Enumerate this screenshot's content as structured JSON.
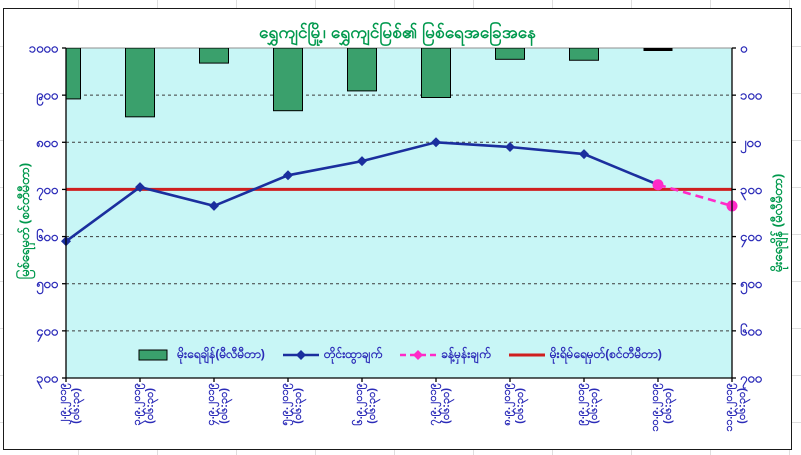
{
  "title": "ရွှေကျင်မြို့၊ ရွှေကျင်မြစ်၏ မြစ်ရေအခြေအနေ",
  "left_axis": {
    "title": "မြစ်ရေမှတ် (စင်တီမီတာ)",
    "tick_labels": [
      "၁၀၀၀",
      "၉၀၀",
      "၈၀၀",
      "၇၀၀",
      "၆၀၀",
      "၅၀၀",
      "၄၀၀",
      "၃၀၀"
    ],
    "tick_values": [
      1000,
      900,
      800,
      700,
      600,
      500,
      400,
      300
    ]
  },
  "right_axis": {
    "title": "မိုးရေချိန် (မီလီမီတာ)",
    "tick_labels": [
      "၀",
      "၁၀၀",
      "၂၀၀",
      "၃၀၀",
      "၄၀၀",
      "၅၀၀",
      "၆၀၀",
      "၇၀၀"
    ],
    "tick_values": [
      0,
      100,
      200,
      300,
      400,
      500,
      600,
      700
    ]
  },
  "x_axis": {
    "time_suffix": "(၀၆:၃၀)"
  },
  "legend": {
    "items": [
      {
        "key": "rainfall",
        "label": "မိုးရေချိန်(မီလီမီတာ)",
        "marker": "bar",
        "color": "#3aa06c"
      },
      {
        "key": "measured",
        "label": "တိုင်းထွာချက်",
        "marker": "line-diamond",
        "color": "#1b2f9e"
      },
      {
        "key": "forecast",
        "label": "ခန့်မှန်းချက်",
        "marker": "dash-diamond",
        "color": "#ff2ac8"
      },
      {
        "key": "danger",
        "label": "မိုးရိမ်ရေမှတ်(စင်တီမီတာ)",
        "marker": "line",
        "color": "#cf1f1f"
      }
    ]
  },
  "colors": {
    "plot_bg": "#c8f6f6",
    "axis_text": "#2b2bb8",
    "title_text": "#00994d",
    "bar_fill": "#3aa06c",
    "measured_line": "#1b2f9e",
    "forecast_line": "#ff2ac8",
    "danger_line": "#cf1f1f"
  },
  "chart_data": {
    "type": "combo",
    "categories": [
      "၂.၉.၂၀၁၉",
      "၃.၉.၂၀၁၉",
      "၄.၉.၂၀၁၉",
      "၅.၉.၂၀၁၉",
      "၆.၉.၂၀၁၉",
      "၇.၉.၂၀၁၉",
      "၈.၉.၂၀၁၉",
      "၉.၉.၂၀၁၉",
      "၁၀.၉.၂၀၁၉",
      "၁၁.၉.၂၀၁၉"
    ],
    "category_time": "(၀၆:၃၀)",
    "left_axis_range": [
      300,
      1000
    ],
    "right_axis_range": [
      0,
      700
    ],
    "right_axis_inverted": true,
    "grid_interval": 100,
    "legend_position": "bottom-inside",
    "series": [
      {
        "name": "မိုးရေချိန်(မီလီမီတာ)",
        "type": "bar",
        "axis": "right",
        "unit": "mm",
        "values": [
          108,
          146,
          32,
          133,
          91,
          105,
          24,
          26,
          0,
          null
        ]
      },
      {
        "name": "တိုင်းထွာချက်",
        "type": "line",
        "axis": "left",
        "unit": "cm",
        "values": [
          590,
          705,
          665,
          730,
          760,
          800,
          790,
          775,
          710,
          null
        ]
      },
      {
        "name": "ခန့်မှန်းချက်",
        "type": "line-dashed",
        "axis": "left",
        "unit": "cm",
        "values": [
          null,
          null,
          null,
          null,
          null,
          null,
          null,
          null,
          710,
          665
        ]
      },
      {
        "name": "မိုးရိမ်ရေမှတ်(စင်တီမီတာ)",
        "type": "constant-line",
        "axis": "left",
        "unit": "cm",
        "value": 700
      }
    ]
  }
}
